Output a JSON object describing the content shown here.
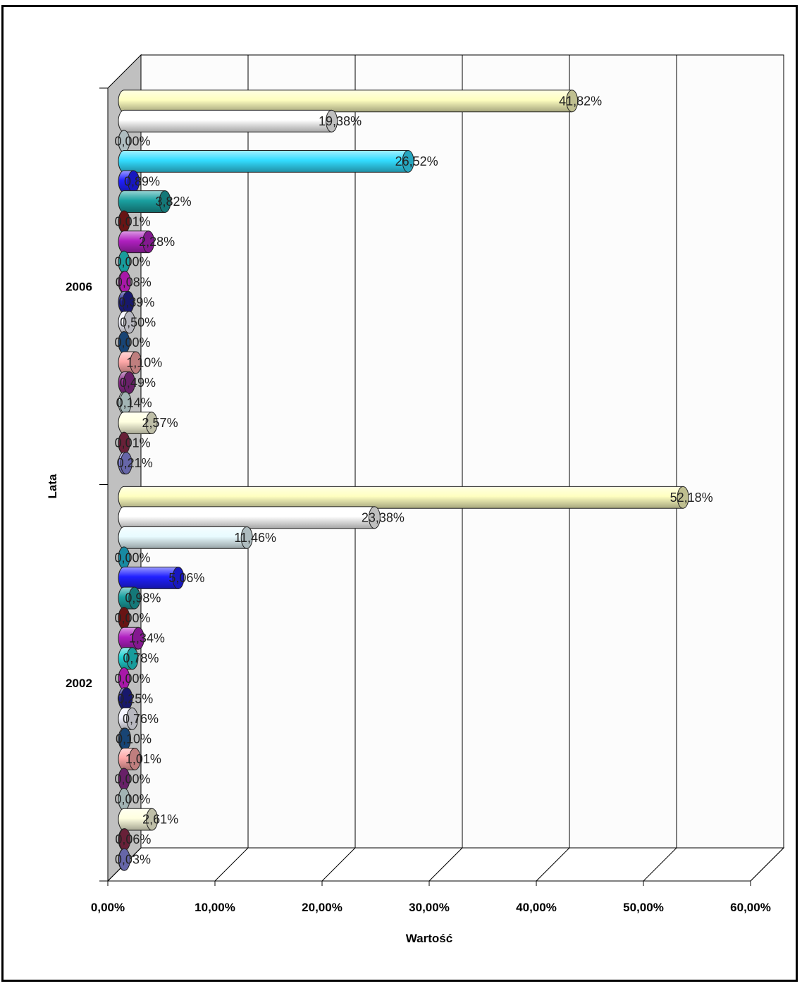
{
  "chart_data": {
    "type": "bar",
    "orientation": "horizontal",
    "title": "",
    "xlabel": "Wartość",
    "ylabel": "Lata",
    "xlim": [
      0,
      60
    ],
    "x_ticks": [
      "0,00%",
      "10,00%",
      "20,00%",
      "30,00%",
      "40,00%",
      "50,00%",
      "60,00%"
    ],
    "categories": [
      "2006",
      "2002"
    ],
    "grid": true,
    "legend": "none",
    "groups": [
      {
        "category": "2006",
        "bars": [
          {
            "value": 41.82,
            "label": "41,82%",
            "color": "#ffffc0"
          },
          {
            "value": 19.38,
            "label": "19,38%",
            "color": "#ffffff"
          },
          {
            "value": 0.0,
            "label": "0,00%",
            "color": "#e8fbff"
          },
          {
            "value": 26.52,
            "label": "26,52%",
            "color": "#33ddff"
          },
          {
            "value": 0.89,
            "label": "0,89%",
            "color": "#2020ff"
          },
          {
            "value": 3.82,
            "label": "3,82%",
            "color": "#1aa0a0"
          },
          {
            "value": 0.01,
            "label": "0,01%",
            "color": "#8a1a1a"
          },
          {
            "value": 2.28,
            "label": "2,28%",
            "color": "#b020c0"
          },
          {
            "value": 0.0,
            "label": "0,00%",
            "color": "#20d0d0"
          },
          {
            "value": 0.08,
            "label": "0,08%",
            "color": "#e020e0"
          },
          {
            "value": 0.39,
            "label": "0,39%",
            "color": "#202090"
          },
          {
            "value": 0.5,
            "label": "0,50%",
            "color": "#f4f4ff"
          },
          {
            "value": 0.0,
            "label": "0,00%",
            "color": "#205a9a"
          },
          {
            "value": 1.1,
            "label": "1,10%",
            "color": "#ffa8a8"
          },
          {
            "value": 0.49,
            "label": "0,49%",
            "color": "#8a2a8a"
          },
          {
            "value": 0.14,
            "label": "0,14%",
            "color": "#d8f0f0"
          },
          {
            "value": 2.57,
            "label": "2,57%",
            "color": "#ffffe0"
          },
          {
            "value": 0.01,
            "label": "0,01%",
            "color": "#8a2a4a"
          },
          {
            "value": 0.21,
            "label": "0,21%",
            "color": "#8888e0"
          }
        ]
      },
      {
        "category": "2002",
        "bars": [
          {
            "value": 52.18,
            "label": "52,18%",
            "color": "#ffffc0"
          },
          {
            "value": 23.38,
            "label": "23,38%",
            "color": "#ffffff"
          },
          {
            "value": 11.46,
            "label": "11,46%",
            "color": "#e8fbff"
          },
          {
            "value": 0.0,
            "label": "0,00%",
            "color": "#20b8d8"
          },
          {
            "value": 5.06,
            "label": "5,06%",
            "color": "#2020ff"
          },
          {
            "value": 0.98,
            "label": "0,98%",
            "color": "#1aa0a0"
          },
          {
            "value": 0.0,
            "label": "0,00%",
            "color": "#8a1a1a"
          },
          {
            "value": 1.34,
            "label": "1,34%",
            "color": "#b020c0"
          },
          {
            "value": 0.78,
            "label": "0,78%",
            "color": "#20d0d0"
          },
          {
            "value": 0.0,
            "label": "0,00%",
            "color": "#e020e0"
          },
          {
            "value": 0.25,
            "label": "0,25%",
            "color": "#202090"
          },
          {
            "value": 0.76,
            "label": "0,76%",
            "color": "#f4f4ff"
          },
          {
            "value": 0.1,
            "label": "0,10%",
            "color": "#205a9a"
          },
          {
            "value": 1.01,
            "label": "1,01%",
            "color": "#ffa8a8"
          },
          {
            "value": 0.0,
            "label": "0,00%",
            "color": "#8a2a8a"
          },
          {
            "value": 0.0,
            "label": "0,00%",
            "color": "#d8f0f0"
          },
          {
            "value": 2.61,
            "label": "2,61%",
            "color": "#ffffe0"
          },
          {
            "value": 0.06,
            "label": "0,06%",
            "color": "#8a2a4a"
          },
          {
            "value": 0.03,
            "label": "0,03%",
            "color": "#8888e0"
          }
        ]
      }
    ]
  }
}
